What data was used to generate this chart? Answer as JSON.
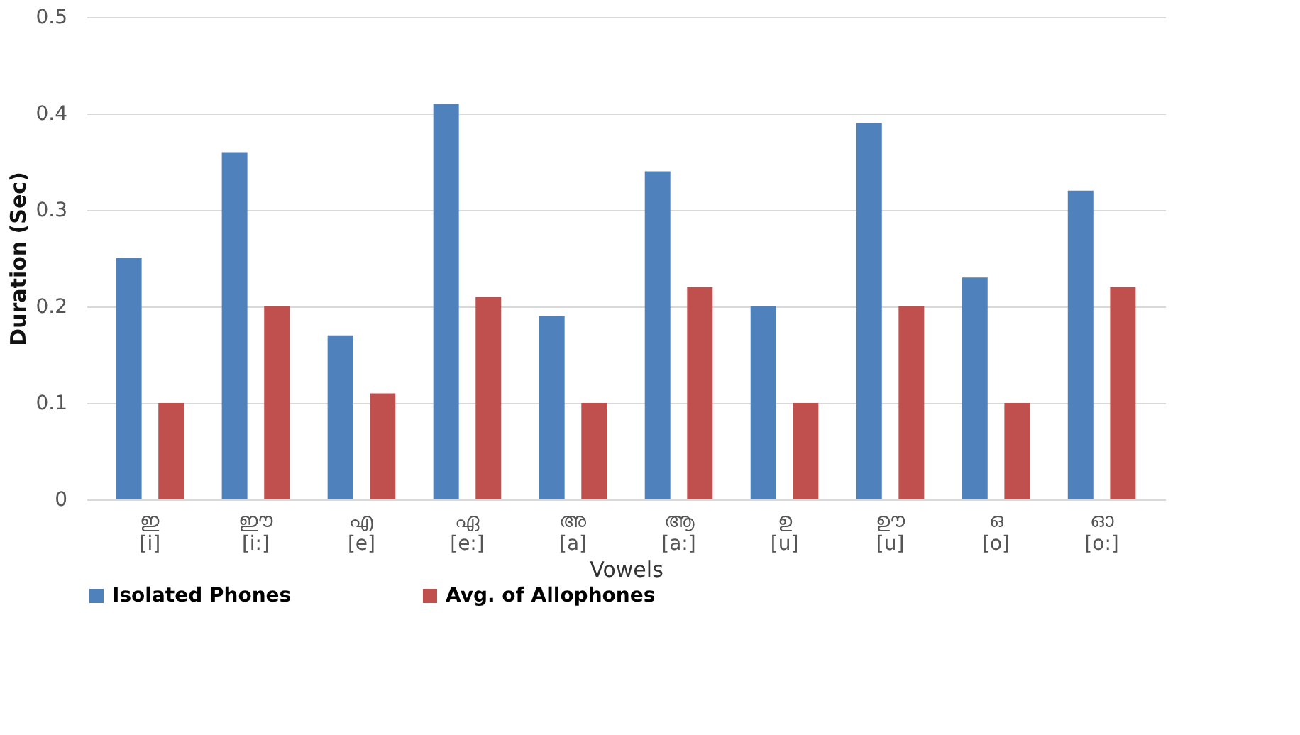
{
  "chart_data": {
    "type": "bar",
    "xlabel": "Vowels",
    "ylabel": "Duration (Sec)",
    "categories": [
      "ഇ\n[i]",
      "ഈ\n[i:]",
      "എ\n[e]",
      "ഏ\n[e:]",
      "അ\n[a]",
      "ആ\n[a:]",
      "ഉ\n[u]",
      "ഊ\n[u]",
      "ഒ\n[o]",
      "ഓ\n[o:]"
    ],
    "series": [
      {
        "name": "Isolated Phones",
        "color": "#4f81bd",
        "values": [
          0.25,
          0.36,
          0.17,
          0.41,
          0.19,
          0.34,
          0.2,
          0.39,
          0.23,
          0.32
        ]
      },
      {
        "name": "Avg. of Allophones",
        "color": "#c0504d",
        "values": [
          0.1,
          0.2,
          0.11,
          0.21,
          0.1,
          0.22,
          0.1,
          0.2,
          0.1,
          0.22
        ]
      }
    ],
    "ylim": [
      0,
      0.5
    ],
    "yticks": [
      0,
      0.1,
      0.2,
      0.3,
      0.4,
      0.5
    ],
    "grid": "y",
    "legend": "bottom left"
  }
}
